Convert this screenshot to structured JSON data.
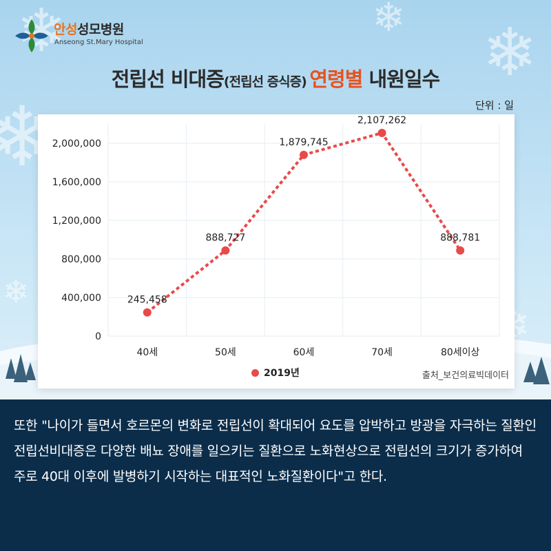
{
  "logo": {
    "name_accent": "안성",
    "name_rest": "성모병원",
    "subtitle": "Anseong St.Mary Hospital",
    "icon": "cross-leaf-icon"
  },
  "title": {
    "part1": "전립선 비대증",
    "part2": "(전립선 증식증)",
    "part3": "연령별",
    "part4": " 내원일수"
  },
  "unit_label": "단위 : 일",
  "legend_label": "2019년",
  "source_label": "출처_보건의료빅데이터",
  "colors": {
    "series": "#e84a4a",
    "accent": "#e8521f",
    "panel": "#0b2d4a"
  },
  "body_text": "또한 \"나이가 들면서 호르몬의 변화로 전립선이 확대되어 요도를 압박하고 방광을 자극하는 질환인 전립선비대증은 다양한 배뇨 장애를 일으키는 질환으로 노화현상으로 전립선의 크기가 증가하여 주로 40대 이후에 발병하기 시작하는 대표적인 노화질환이다\"고 한다.",
  "chart_data": {
    "type": "line",
    "title": "전립선 비대증(전립선 증식증) 연령별 내원일수",
    "categories": [
      "40세",
      "50세",
      "60세",
      "70세",
      "80세이상"
    ],
    "series": [
      {
        "name": "2019년",
        "values": [
          245458,
          888727,
          1879745,
          2107262,
          888781
        ],
        "labels": [
          "245,458",
          "888,727",
          "1,879,745",
          "2,107,262",
          "888,781"
        ]
      }
    ],
    "yticks": [
      "0",
      "400,000",
      "800,000",
      "1,200,000",
      "1,600,000",
      "2,000,000"
    ],
    "ylim": [
      0,
      2200000
    ],
    "grid": true,
    "legend_position": "bottom"
  }
}
